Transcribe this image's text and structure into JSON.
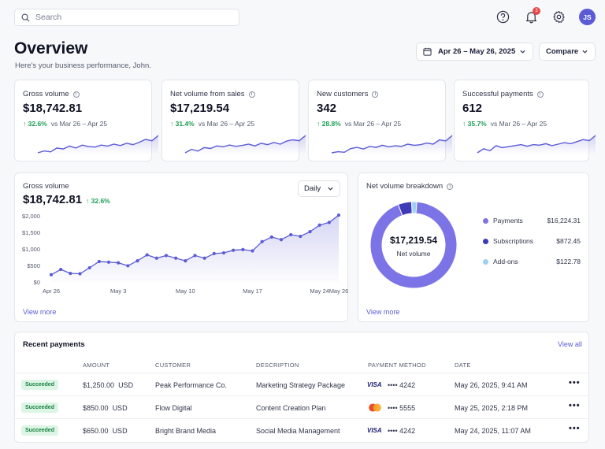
{
  "search": {
    "placeholder": "Search"
  },
  "topbar": {
    "notification_count": "3",
    "avatar_initials": "JS"
  },
  "header": {
    "title": "Overview",
    "subtitle": "Here's your business performance, John.",
    "date_range": "Apr 26 – May 26, 2025",
    "compare_label": "Compare"
  },
  "kpis": [
    {
      "label": "Gross volume",
      "value": "$18,742.81",
      "delta": "32.6%",
      "compare": "vs Mar 26 – Apr 25",
      "spark": [
        20,
        24,
        22,
        30,
        28,
        34,
        30,
        36,
        33,
        32,
        36,
        34,
        38,
        35,
        40,
        37,
        42,
        48,
        45,
        56
      ]
    },
    {
      "label": "Net volume from sales",
      "value": "$17,219.54",
      "delta": "31.4%",
      "compare": "vs Mar 26 – Apr 25",
      "spark": [
        18,
        26,
        22,
        30,
        28,
        34,
        32,
        36,
        33,
        35,
        38,
        34,
        40,
        37,
        42,
        38,
        45,
        48,
        46,
        58
      ]
    },
    {
      "label": "New customers",
      "value": "342",
      "delta": "28.8%",
      "compare": "vs Mar 26 – Apr 25",
      "spark": [
        20,
        22,
        21,
        28,
        30,
        27,
        32,
        30,
        34,
        31,
        33,
        32,
        36,
        34,
        35,
        38,
        36,
        44,
        42,
        52
      ]
    },
    {
      "label": "Successful payments",
      "value": "612",
      "delta": "35.7%",
      "compare": "vs Mar 26 – Apr 25",
      "spark": [
        20,
        28,
        24,
        34,
        30,
        32,
        34,
        36,
        33,
        36,
        35,
        38,
        34,
        37,
        40,
        38,
        42,
        46,
        44,
        54
      ]
    }
  ],
  "gross_chart": {
    "label": "Gross volume",
    "value": "$18,742.81",
    "delta": "32.6%",
    "period_label": "Daily",
    "view_more": "View more"
  },
  "chart_data": {
    "type": "area",
    "title": "Gross volume",
    "x": [
      "Apr 26",
      "Apr 27",
      "Apr 28",
      "Apr 29",
      "Apr 30",
      "May 1",
      "May 2",
      "May 3",
      "May 4",
      "May 5",
      "May 6",
      "May 7",
      "May 8",
      "May 9",
      "May 10",
      "May 11",
      "May 12",
      "May 13",
      "May 14",
      "May 15",
      "May 16",
      "May 17",
      "May 18",
      "May 19",
      "May 20",
      "May 21",
      "May 22",
      "May 23",
      "May 24",
      "May 25",
      "May 26"
    ],
    "series": [
      {
        "values": [
          220,
          380,
          260,
          250,
          430,
          620,
          600,
          580,
          490,
          640,
          820,
          720,
          800,
          720,
          640,
          800,
          720,
          860,
          880,
          960,
          980,
          940,
          1220,
          1360,
          1280,
          1430,
          1380,
          1520,
          1720,
          1800,
          2020
        ]
      }
    ],
    "xticks": [
      "Apr 26",
      "May 3",
      "May 10",
      "May 17",
      "May 24",
      "May 26"
    ],
    "yticks": [
      "$0",
      "$500",
      "$1,000",
      "$1,500",
      "$2,000"
    ],
    "ylim": [
      0,
      2000
    ],
    "color": "#5b5bd6"
  },
  "net_breakdown": {
    "label": "Net volume breakdown",
    "center_value": "$17,219.54",
    "center_label": "Net volume",
    "view_more": "View more",
    "items": [
      {
        "name": "Payments",
        "value": "$16,224.31",
        "amount": 16224.31,
        "color": "#7c74e6"
      },
      {
        "name": "Subscriptions",
        "value": "$872.45",
        "amount": 872.45,
        "color": "#3e3ab8"
      },
      {
        "name": "Add-ons",
        "value": "$122.78",
        "amount": 122.78,
        "color": "#9dd0f2"
      }
    ]
  },
  "recent": {
    "title": "Recent payments",
    "view_all": "View all",
    "columns": [
      "AMOUNT",
      "CUSTOMER",
      "DESCRIPTION",
      "PAYMENT METHOD",
      "DATE"
    ],
    "rows": [
      {
        "status": "Succeeded",
        "amount": "$1,250.00",
        "currency": "USD",
        "customer": "Peak Performance Co.",
        "description": "Marketing Strategy Package",
        "method": "VISA",
        "last4": "•••• 4242",
        "date": "May 26, 2025, 9:41 AM"
      },
      {
        "status": "Succeeded",
        "amount": "$850.00",
        "currency": "USD",
        "customer": "Flow Digital",
        "description": "Content Creation Plan",
        "method": "Mastercard",
        "last4": "•••• 5555",
        "date": "May 25, 2025, 2:18 PM"
      },
      {
        "status": "Succeeded",
        "amount": "$650.00",
        "currency": "USD",
        "customer": "Bright Brand Media",
        "description": "Social Media Management",
        "method": "VISA",
        "last4": "•••• 4242",
        "date": "May 24, 2025, 11:07 AM"
      }
    ]
  },
  "colors": {
    "accent": "#5b5bd6",
    "success": "#1e9e55"
  }
}
